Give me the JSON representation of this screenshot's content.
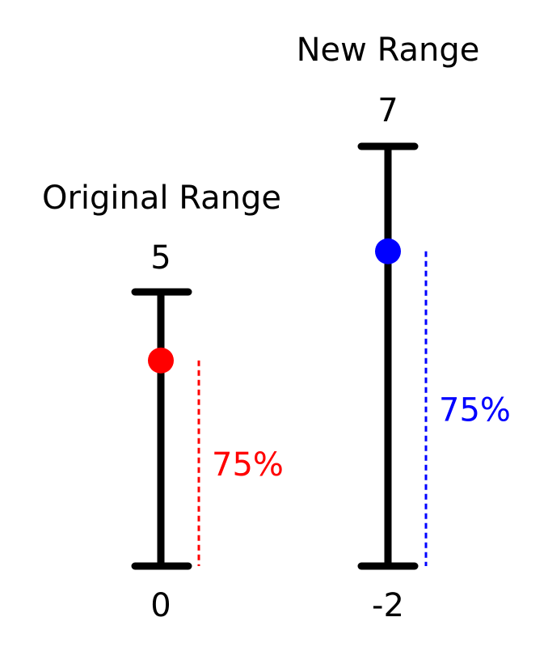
{
  "original": {
    "title": "Original Range",
    "top_label": "5",
    "bottom_label": "0",
    "min": 0,
    "max": 5,
    "fraction": 0.75,
    "percent_label": "75%",
    "color": "#ff0000"
  },
  "new": {
    "title": "New Range",
    "top_label": "7",
    "bottom_label": "-2",
    "min": -2,
    "max": 7,
    "fraction": 0.75,
    "percent_label": "75%",
    "color": "#0000ff"
  }
}
